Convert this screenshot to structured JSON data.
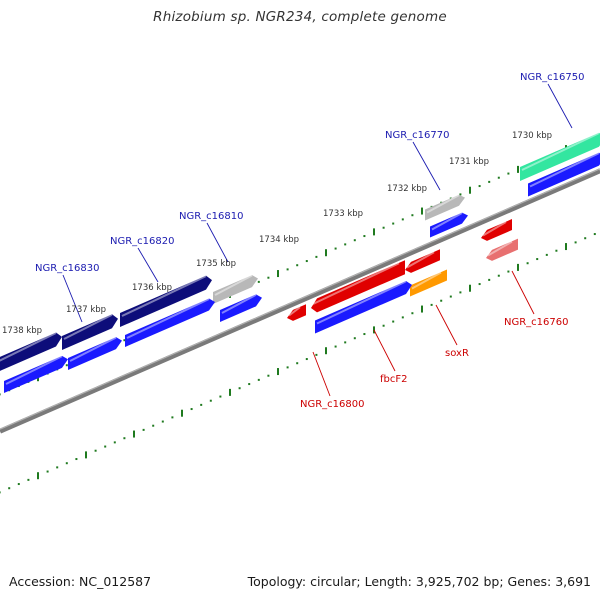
{
  "title": "Rhizobium sp. NGR234, complete genome",
  "footer": {
    "accession": "Accession: NC_012587",
    "summary": "Topology: circular; Length: 3,925,702 bp; Genes: 3,691"
  },
  "colors": {
    "backbone": "#7a7a7a",
    "ticks": "#1f7a1f",
    "cds_fwd": "#1a1aff",
    "gene_fwd_dark": "#0d0d7a",
    "gene_grey": "#b8b8b8",
    "gene_green": "#33e6a0",
    "gene_red": "#e00000",
    "gene_red_light": "#e87070",
    "gene_orange": "#ff9900",
    "label_fwd": "#1b1bb0",
    "label_rev": "#cc0000"
  },
  "scale_ticks": [
    {
      "label": "1738 kbp"
    },
    {
      "label": "1737 kbp"
    },
    {
      "label": "1736 kbp"
    },
    {
      "label": "1735 kbp"
    },
    {
      "label": "1734 kbp"
    },
    {
      "label": "1733 kbp"
    },
    {
      "label": "1732 kbp"
    },
    {
      "label": "1731 kbp"
    },
    {
      "label": "1730 kbp"
    }
  ],
  "gene_labels": [
    {
      "text": "NGR_c16750",
      "strand": "fwd"
    },
    {
      "text": "NGR_c16770",
      "strand": "fwd"
    },
    {
      "text": "NGR_c16810",
      "strand": "fwd"
    },
    {
      "text": "NGR_c16820",
      "strand": "fwd"
    },
    {
      "text": "NGR_c16830",
      "strand": "fwd"
    },
    {
      "text": "NGR_c16760",
      "strand": "rev"
    },
    {
      "text": "soxR",
      "strand": "rev"
    },
    {
      "text": "fbcF2",
      "strand": "rev"
    },
    {
      "text": "NGR_c16800",
      "strand": "rev"
    }
  ]
}
